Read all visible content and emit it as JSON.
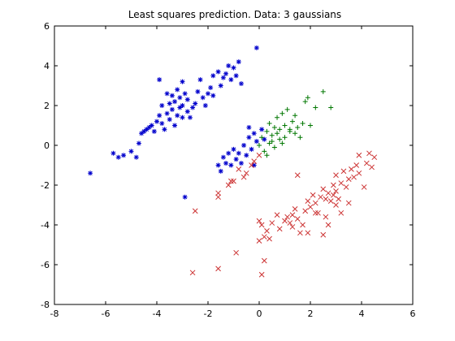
{
  "chart_data": {
    "type": "scatter",
    "title": "Least squares prediction. Data: 3 gaussians",
    "xlabel": "",
    "ylabel": "",
    "xlim": [
      -8,
      6
    ],
    "ylim": [
      -8,
      6
    ],
    "xticks": [
      -8,
      -6,
      -4,
      -2,
      0,
      2,
      4,
      6
    ],
    "yticks": [
      -8,
      -6,
      -4,
      -2,
      0,
      2,
      4,
      6
    ],
    "xtick_labels": [
      "-8",
      "-6",
      "-4",
      "-2",
      "0",
      "2",
      "4",
      "6"
    ],
    "ytick_labels": [
      "-8",
      "-6",
      "-4",
      "-2",
      "0",
      "2",
      "4",
      "6"
    ],
    "grid": false,
    "legend": "none",
    "series": [
      {
        "marker": "asterisk",
        "color": "#0000cc",
        "points": [
          [
            -6.6,
            -1.4
          ],
          [
            -5.7,
            -0.4
          ],
          [
            -5.5,
            -0.6
          ],
          [
            -5.3,
            -0.5
          ],
          [
            -5.0,
            -0.3
          ],
          [
            -4.8,
            -0.6
          ],
          [
            -4.7,
            0.1
          ],
          [
            -4.6,
            0.6
          ],
          [
            -4.5,
            0.7
          ],
          [
            -4.4,
            0.8
          ],
          [
            -4.3,
            0.9
          ],
          [
            -4.2,
            1.0
          ],
          [
            -4.1,
            0.7
          ],
          [
            -4.0,
            1.2
          ],
          [
            -3.9,
            3.3
          ],
          [
            -3.9,
            1.5
          ],
          [
            -3.8,
            1.1
          ],
          [
            -3.8,
            2.0
          ],
          [
            -3.7,
            0.8
          ],
          [
            -3.6,
            1.6
          ],
          [
            -3.6,
            2.6
          ],
          [
            -3.5,
            1.3
          ],
          [
            -3.5,
            2.1
          ],
          [
            -3.4,
            1.8
          ],
          [
            -3.4,
            2.5
          ],
          [
            -3.3,
            1.0
          ],
          [
            -3.3,
            2.2
          ],
          [
            -3.2,
            1.5
          ],
          [
            -3.2,
            2.8
          ],
          [
            -3.1,
            1.9
          ],
          [
            -3.1,
            2.4
          ],
          [
            -3.0,
            3.2
          ],
          [
            -3.0,
            2.0
          ],
          [
            -3.0,
            1.4
          ],
          [
            -2.9,
            2.6
          ],
          [
            -2.8,
            1.7
          ],
          [
            -2.8,
            2.3
          ],
          [
            -2.7,
            1.4
          ],
          [
            -2.6,
            1.9
          ],
          [
            -2.5,
            2.1
          ],
          [
            -2.4,
            2.7
          ],
          [
            -2.3,
            3.3
          ],
          [
            -2.2,
            2.4
          ],
          [
            -2.1,
            2.0
          ],
          [
            -2.0,
            2.6
          ],
          [
            -1.9,
            2.9
          ],
          [
            -1.8,
            3.5
          ],
          [
            -1.8,
            2.5
          ],
          [
            -1.6,
            3.7
          ],
          [
            -1.5,
            3.0
          ],
          [
            -1.4,
            3.4
          ],
          [
            -1.3,
            3.6
          ],
          [
            -1.2,
            4.0
          ],
          [
            -1.1,
            3.3
          ],
          [
            -1.0,
            3.9
          ],
          [
            -0.9,
            3.5
          ],
          [
            -0.8,
            4.2
          ],
          [
            -0.7,
            3.1
          ],
          [
            -0.1,
            4.9
          ],
          [
            -2.9,
            -2.6
          ],
          [
            -1.6,
            -1.0
          ],
          [
            -1.5,
            -1.3
          ],
          [
            -1.4,
            -0.6
          ],
          [
            -1.3,
            -0.9
          ],
          [
            -1.2,
            -0.4
          ],
          [
            -1.1,
            -1.0
          ],
          [
            -1.0,
            -0.2
          ],
          [
            -0.9,
            -0.7
          ],
          [
            -0.8,
            -0.4
          ],
          [
            -0.7,
            -0.9
          ],
          [
            -0.6,
            0.0
          ],
          [
            -0.5,
            -0.5
          ],
          [
            -0.4,
            0.4
          ],
          [
            -0.3,
            -0.2
          ],
          [
            -0.2,
            0.6
          ],
          [
            -0.1,
            0.2
          ],
          [
            0.1,
            0.8
          ],
          [
            0.2,
            0.3
          ],
          [
            -0.4,
            0.9
          ],
          [
            -0.2,
            -1.0
          ]
        ]
      },
      {
        "marker": "plus",
        "color": "#007700",
        "points": [
          [
            0.0,
            0.0
          ],
          [
            0.1,
            0.4
          ],
          [
            0.2,
            -0.3
          ],
          [
            0.3,
            0.7
          ],
          [
            0.4,
            0.1
          ],
          [
            0.4,
            1.1
          ],
          [
            0.5,
            0.5
          ],
          [
            0.6,
            0.9
          ],
          [
            0.6,
            -0.1
          ],
          [
            0.7,
            0.6
          ],
          [
            0.7,
            1.4
          ],
          [
            0.8,
            0.3
          ],
          [
            0.8,
            0.8
          ],
          [
            0.9,
            1.6
          ],
          [
            1.0,
            1.0
          ],
          [
            1.0,
            0.4
          ],
          [
            1.1,
            1.8
          ],
          [
            1.2,
            0.7
          ],
          [
            1.3,
            1.2
          ],
          [
            1.4,
            0.6
          ],
          [
            1.4,
            1.5
          ],
          [
            1.5,
            0.9
          ],
          [
            1.6,
            0.4
          ],
          [
            1.7,
            1.1
          ],
          [
            1.8,
            2.2
          ],
          [
            1.9,
            2.4
          ],
          [
            2.0,
            1.0
          ],
          [
            2.2,
            1.9
          ],
          [
            2.5,
            2.7
          ],
          [
            2.8,
            1.9
          ],
          [
            0.3,
            -0.5
          ],
          [
            0.5,
            0.2
          ],
          [
            1.2,
            0.8
          ],
          [
            0.9,
            0.1
          ]
        ]
      },
      {
        "marker": "x",
        "color": "#cc3333",
        "points": [
          [
            -2.6,
            -6.4
          ],
          [
            -2.5,
            -3.3
          ],
          [
            -1.6,
            -2.4
          ],
          [
            -1.6,
            -2.6
          ],
          [
            -1.6,
            -6.2
          ],
          [
            -1.2,
            -2.0
          ],
          [
            -1.1,
            -1.8
          ],
          [
            -1.0,
            -1.8
          ],
          [
            -0.9,
            -5.4
          ],
          [
            -0.8,
            -1.2
          ],
          [
            -0.6,
            -1.6
          ],
          [
            -0.5,
            -1.4
          ],
          [
            -0.3,
            -1.0
          ],
          [
            -0.2,
            -0.8
          ],
          [
            0.0,
            -0.5
          ],
          [
            0.0,
            -4.8
          ],
          [
            0.0,
            -3.8
          ],
          [
            0.1,
            -4.0
          ],
          [
            0.1,
            -6.5
          ],
          [
            0.2,
            -5.8
          ],
          [
            0.2,
            -4.6
          ],
          [
            0.3,
            -4.3
          ],
          [
            0.4,
            -4.7
          ],
          [
            0.5,
            -3.9
          ],
          [
            0.7,
            -3.5
          ],
          [
            0.8,
            -4.2
          ],
          [
            1.0,
            -3.8
          ],
          [
            1.1,
            -3.6
          ],
          [
            1.2,
            -3.9
          ],
          [
            1.3,
            -4.1
          ],
          [
            1.3,
            -3.5
          ],
          [
            1.4,
            -3.2
          ],
          [
            1.5,
            -3.7
          ],
          [
            1.6,
            -4.4
          ],
          [
            1.7,
            -4.0
          ],
          [
            1.8,
            -3.3
          ],
          [
            1.9,
            -2.8
          ],
          [
            2.0,
            -3.1
          ],
          [
            2.1,
            -2.5
          ],
          [
            2.2,
            -2.9
          ],
          [
            2.3,
            -3.4
          ],
          [
            2.4,
            -2.6
          ],
          [
            2.5,
            -2.2
          ],
          [
            2.5,
            -4.5
          ],
          [
            2.6,
            -3.6
          ],
          [
            2.7,
            -2.4
          ],
          [
            2.8,
            -2.8
          ],
          [
            2.9,
            -2.0
          ],
          [
            3.0,
            -2.3
          ],
          [
            3.0,
            -1.5
          ],
          [
            3.1,
            -2.7
          ],
          [
            3.2,
            -1.9
          ],
          [
            3.3,
            -1.3
          ],
          [
            3.4,
            -2.1
          ],
          [
            3.5,
            -1.7
          ],
          [
            3.6,
            -1.2
          ],
          [
            3.7,
            -1.6
          ],
          [
            3.8,
            -1.0
          ],
          [
            3.9,
            -1.4
          ],
          [
            4.1,
            -2.1
          ],
          [
            4.2,
            -0.9
          ],
          [
            4.3,
            -0.4
          ],
          [
            4.4,
            -1.1
          ],
          [
            4.5,
            -0.6
          ],
          [
            3.9,
            -0.5
          ],
          [
            3.2,
            -3.4
          ],
          [
            2.7,
            -4.0
          ],
          [
            1.9,
            -4.4
          ],
          [
            1.5,
            -1.5
          ],
          [
            2.6,
            -2.7
          ],
          [
            3.0,
            -3.0
          ],
          [
            2.2,
            -3.4
          ],
          [
            2.9,
            -2.5
          ],
          [
            3.5,
            -2.9
          ]
        ]
      }
    ]
  }
}
